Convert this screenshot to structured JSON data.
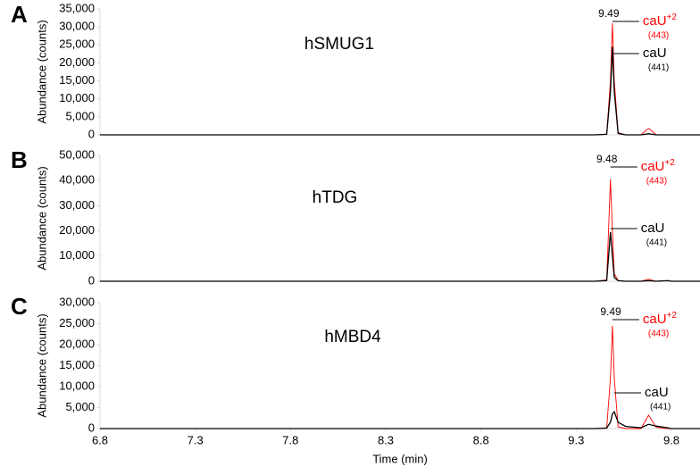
{
  "chart_data": [
    {
      "type": "line",
      "panel": "A",
      "title": "hSMUG1",
      "ylabel": "Abundance (counts)",
      "peak_label": 9.49,
      "x": [
        6.8,
        9.4,
        9.46,
        9.48,
        9.49,
        9.5,
        9.52,
        9.56,
        9.64,
        9.68,
        9.72,
        9.78,
        9.8,
        9.84,
        9.95
      ],
      "series": [
        {
          "name": "caU",
          "sup": "+2",
          "mass": "(443)",
          "color": "#ff0000",
          "values": [
            0,
            0,
            200,
            15000,
            31000,
            15000,
            600,
            0,
            0,
            1800,
            0,
            0,
            0,
            0,
            0
          ]
        },
        {
          "name": "caU",
          "mass": "(441)",
          "color": "#000000",
          "values": [
            0,
            0,
            150,
            12000,
            24500,
            12000,
            400,
            0,
            0,
            300,
            0,
            0,
            0,
            0,
            0
          ]
        }
      ],
      "xlim": [
        6.8,
        9.95
      ],
      "ylim": [
        0,
        35000
      ],
      "yticks": [
        0,
        {
          "value": 5000,
          "label": "5,000"
        },
        {
          "value": 10000,
          "label": "10,000"
        },
        {
          "value": 15000,
          "label": "15,000"
        },
        {
          "value": 20000,
          "label": "20,000"
        },
        {
          "value": 25000,
          "label": "25,000"
        },
        {
          "value": 30000,
          "label": "30,000"
        },
        {
          "value": 35000,
          "label": "35,000"
        }
      ]
    },
    {
      "type": "line",
      "panel": "B",
      "title": "hTDG",
      "ylabel": "Abundance (counts)",
      "peak_label": 9.48,
      "x": [
        6.8,
        9.4,
        9.46,
        9.48,
        9.49,
        9.5,
        9.52,
        9.56,
        9.64,
        9.68,
        9.72,
        9.78,
        9.8,
        9.84,
        9.95
      ],
      "series": [
        {
          "name": "caU",
          "sup": "+2",
          "mass": "(443)",
          "color": "#ff0000",
          "values": [
            0,
            0,
            500,
            40500,
            20000,
            3000,
            300,
            0,
            0,
            800,
            0,
            300,
            0,
            0,
            0
          ]
        },
        {
          "name": "caU",
          "mass": "(441)",
          "color": "#000000",
          "values": [
            0,
            0,
            300,
            19500,
            10000,
            1500,
            200,
            0,
            0,
            200,
            0,
            200,
            0,
            0,
            0
          ]
        }
      ],
      "xlim": [
        6.8,
        9.95
      ],
      "ylim": [
        0,
        50000
      ],
      "yticks": [
        0,
        {
          "value": 10000,
          "label": "10,000"
        },
        {
          "value": 20000,
          "label": "20,000"
        },
        {
          "value": 30000,
          "label": "30,000"
        },
        {
          "value": 40000,
          "label": "40,000"
        },
        {
          "value": 50000,
          "label": "50,000"
        }
      ]
    },
    {
      "type": "line",
      "panel": "C",
      "title": "hMBD4",
      "ylabel": "Abundance (counts)",
      "peak_label": 9.49,
      "xlabel": "Time (min)",
      "x": [
        6.8,
        9.4,
        9.46,
        9.48,
        9.49,
        9.5,
        9.52,
        9.56,
        9.64,
        9.68,
        9.72,
        9.78,
        9.8,
        9.84,
        9.95
      ],
      "series": [
        {
          "name": "caU",
          "sup": "+2",
          "mass": "(443)",
          "color": "#ff0000",
          "values": [
            0,
            0,
            200,
            12000,
            24500,
            12000,
            400,
            0,
            0,
            3200,
            300,
            0,
            0,
            0,
            0
          ]
        },
        {
          "name": "caU",
          "mass": "(441)",
          "color": "#000000",
          "values": [
            0,
            0,
            100,
            1500,
            3500,
            4000,
            1500,
            500,
            200,
            1000,
            600,
            200,
            0,
            0,
            0
          ]
        }
      ],
      "xlim": [
        6.8,
        9.95
      ],
      "ylim": [
        0,
        30000
      ],
      "xticks": [
        6.8,
        7.3,
        7.8,
        8.3,
        8.8,
        9.3,
        9.8
      ],
      "yticks": [
        0,
        {
          "value": 5000,
          "label": "5,000"
        },
        {
          "value": 10000,
          "label": "10,000"
        },
        {
          "value": 15000,
          "label": "15,000"
        },
        {
          "value": 20000,
          "label": "20,000"
        },
        {
          "value": 25000,
          "label": "25,000"
        },
        {
          "value": 30000,
          "label": "30,000"
        }
      ]
    }
  ]
}
